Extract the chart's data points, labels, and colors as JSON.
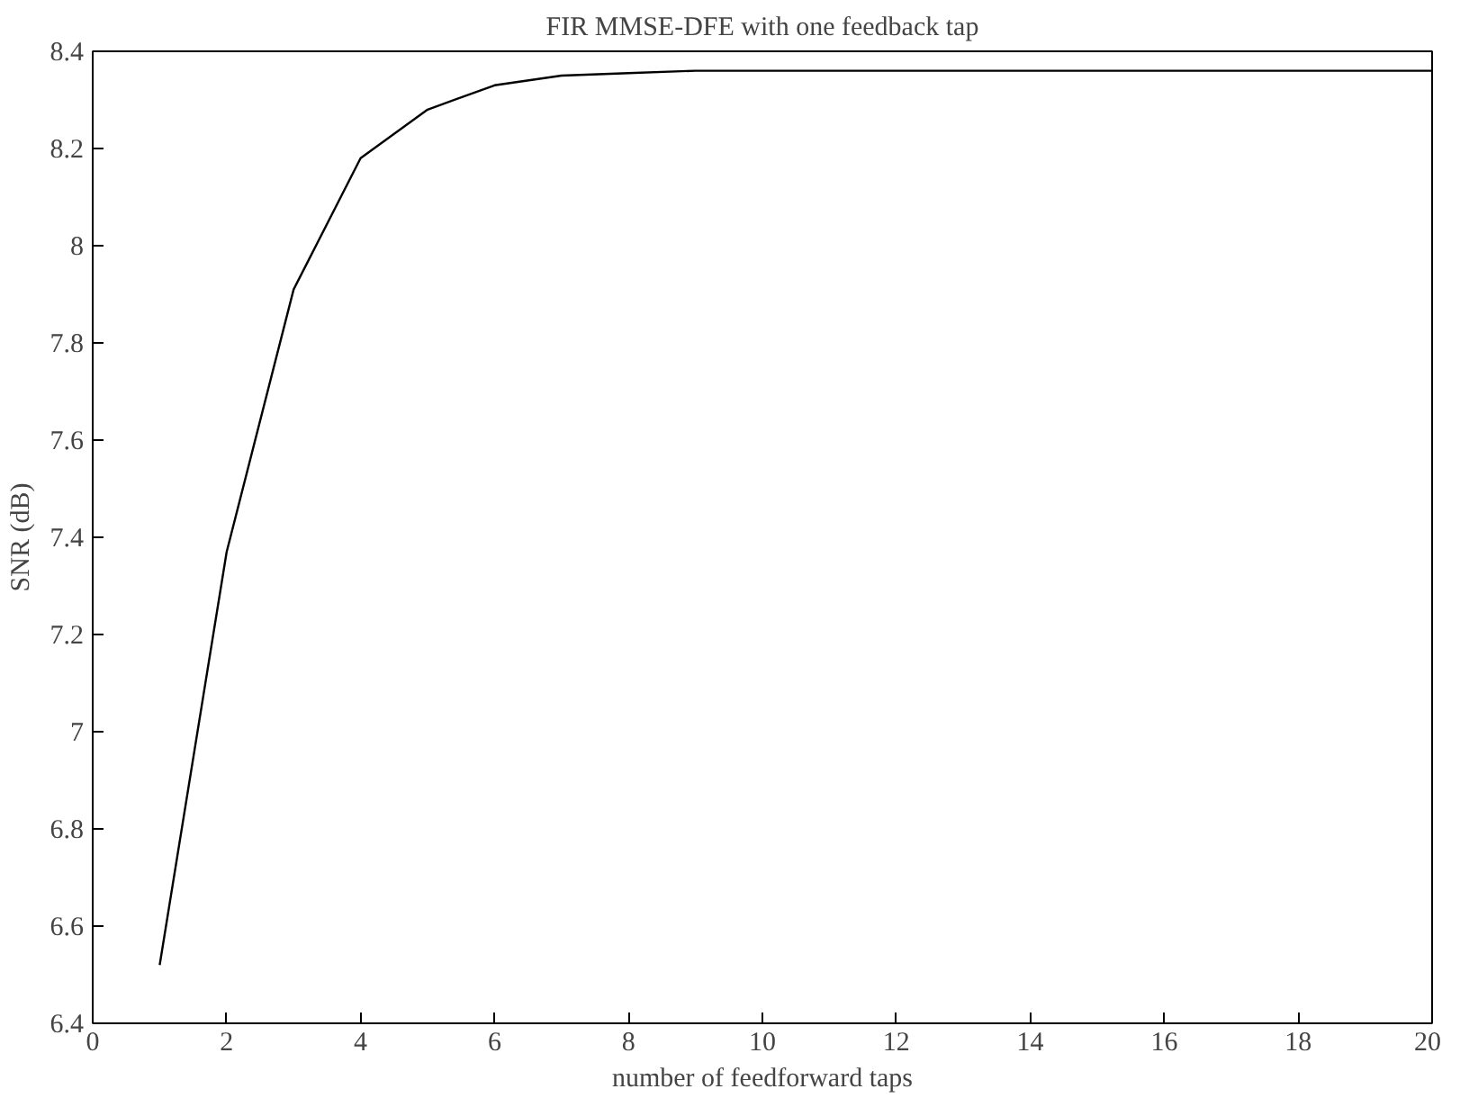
{
  "chart_data": {
    "type": "line",
    "title": "FIR MMSE-DFE with one feedback tap",
    "xlabel": "number of feedforward taps",
    "ylabel": "SNR (dB)",
    "x": [
      1,
      2,
      3,
      4,
      5,
      6,
      7,
      8,
      9,
      10,
      11,
      12,
      13,
      14,
      15,
      16,
      17,
      18,
      19,
      20
    ],
    "series": [
      {
        "color": "#000000",
        "values": [
          6.52,
          7.37,
          7.91,
          8.18,
          8.28,
          8.33,
          8.35,
          8.355,
          8.36,
          8.36,
          8.36,
          8.36,
          8.36,
          8.36,
          8.36,
          8.36,
          8.36,
          8.36,
          8.36,
          8.36
        ]
      }
    ],
    "xlim": [
      0,
      20
    ],
    "xticks": [
      0,
      2,
      4,
      6,
      8,
      10,
      12,
      14,
      16,
      18,
      20
    ],
    "ylim": [
      6.4,
      8.4
    ],
    "yticks": [
      6.4,
      6.6,
      6.8,
      7,
      7.2,
      7.4,
      7.6,
      7.8,
      8,
      8.2,
      8.4
    ],
    "grid": false
  }
}
